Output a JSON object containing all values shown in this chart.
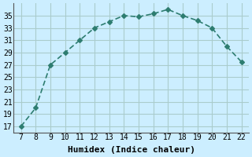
{
  "x": [
    7,
    8,
    9,
    10,
    11,
    12,
    13,
    14,
    15,
    16,
    17,
    18,
    19,
    20,
    21,
    22
  ],
  "y": [
    17,
    20,
    27,
    29,
    31,
    33,
    34,
    35,
    34.8,
    35.3,
    36,
    35,
    34.2,
    33,
    30,
    27.5
  ],
  "xlabel": "Humidex (Indice chaleur)",
  "ylim": [
    16,
    37
  ],
  "yticks": [
    17,
    19,
    21,
    23,
    25,
    27,
    29,
    31,
    33,
    35
  ],
  "xticks": [
    7,
    8,
    9,
    10,
    11,
    12,
    13,
    14,
    15,
    16,
    17,
    18,
    19,
    20,
    21,
    22
  ],
  "line_color": "#2e7d70",
  "marker_color": "#2e7d70",
  "bg_color": "#cceeff",
  "grid_color": "#aacccc",
  "tick_label_fontsize": 7,
  "xlabel_fontsize": 8
}
